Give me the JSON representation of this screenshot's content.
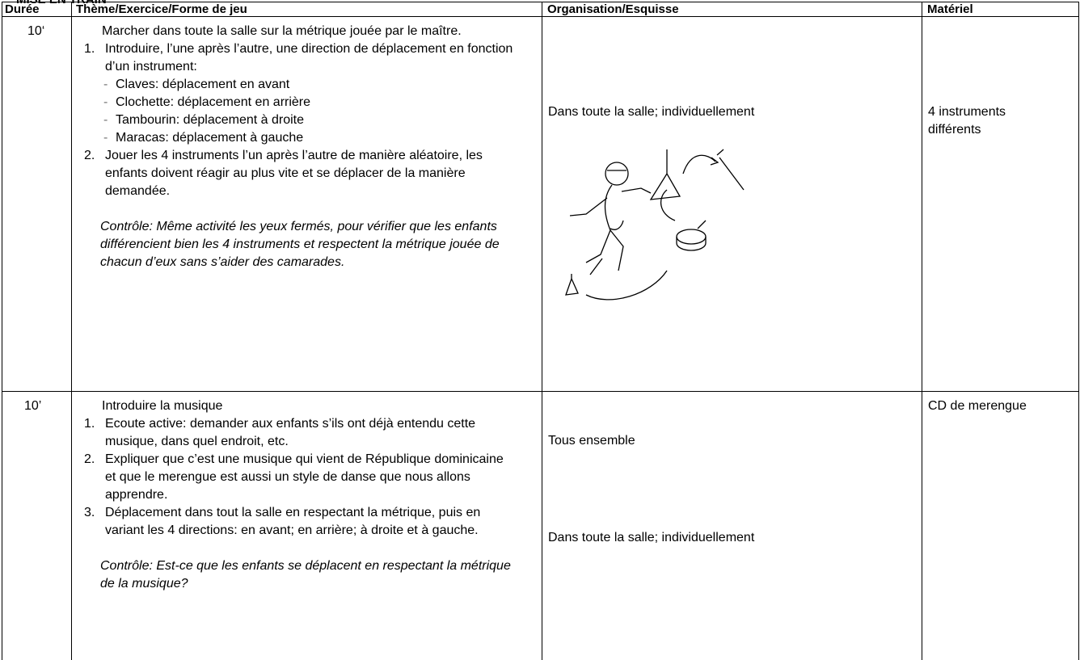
{
  "section_title": "MISE EN TRAIN",
  "table": {
    "headers": [
      "Durée",
      "Thème/Exercice/Forme de jeu",
      "Organisation/Esquisse",
      "Matériel"
    ],
    "rows": [
      {
        "duration": "10‘",
        "intro": "Marcher dans toute la salle sur la métrique jouée par le maître.",
        "items": [
          {
            "number": "1.",
            "text": "Introduire, l’une après l’autre, une direction de déplacement en fonction d’un instrument:",
            "subitems": [
              "Claves: déplacement en avant",
              "Clochette: déplacement en arrière",
              "Tambourin: déplacement à droite",
              "Maracas: déplacement à gauche"
            ]
          },
          {
            "number": "2.",
            "text": "Jouer les 4 instruments l’un après l’autre de manière aléatoire, les enfants doivent réagir au plus vite et se déplacer de la manière demandée."
          }
        ],
        "control": "Contrôle: Même activité les yeux fermés, pour vérifier que les enfants différencient bien les 4 instruments et respectent la métrique jouée de chacun d’eux sans s’aider des camarades.",
        "organisation": [
          "Dans toute la salle; individuellement"
        ],
        "material": "4 instruments différents"
      },
      {
        "duration": "10’",
        "intro": "Introduire la musique",
        "items": [
          {
            "number": "1.",
            "text": "Ecoute active: demander aux enfants s’ils ont déjà entendu cette musique, dans quel endroit, etc."
          },
          {
            "number": "2.",
            "text": "Expliquer que c’est une musique qui vient de République dominicaine et que le merengue est aussi un style de danse que nous allons apprendre."
          },
          {
            "number": "3.",
            "text": "Déplacement dans tout la salle en respectant la métrique, puis en variant les 4 directions: en avant; en arrière; à droite et à gauche."
          }
        ],
        "control": "Contrôle: Est-ce que les enfants se déplacent en respectant la métrique de la musique?",
        "organisation": [
          "Tous ensemble",
          "Dans toute la salle; individuellement"
        ],
        "material": "CD de merengue"
      }
    ]
  }
}
